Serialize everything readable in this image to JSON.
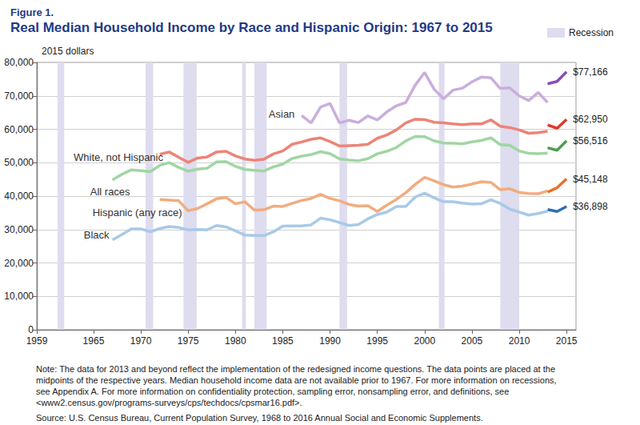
{
  "chart_data": {
    "type": "line",
    "figure_label": "Figure 1.",
    "title": "Real Median Household Income by Race and Hispanic Origin: 1967 to 2015",
    "y_label": "2015 dollars",
    "recession_label": "Recession",
    "recessions": [
      [
        1961.2,
        1961.9
      ],
      [
        1970.5,
        1971.3
      ],
      [
        1974.5,
        1975.9
      ],
      [
        1980.7,
        1981.1
      ],
      [
        1982.0,
        1983.3
      ],
      [
        1991.0,
        1991.8
      ],
      [
        2001.5,
        2002.1
      ],
      [
        2008.0,
        2010.0
      ]
    ],
    "xlim": [
      1959,
      2016
    ],
    "xticks": [
      1959,
      1965,
      1970,
      1975,
      1980,
      1985,
      1990,
      1995,
      2000,
      2005,
      2010,
      2015
    ],
    "ylim": [
      0,
      80000
    ],
    "yticks": [
      0,
      {
        "value": 10000,
        "label": "10,000"
      },
      {
        "value": 20000,
        "label": "20,000"
      },
      {
        "value": 30000,
        "label": "30,000"
      },
      {
        "value": 40000,
        "label": "40,000"
      },
      {
        "value": 50000,
        "label": "50,000"
      },
      {
        "value": 60000,
        "label": "60,000"
      },
      {
        "value": 70000,
        "label": "70,000"
      },
      {
        "value": 80000,
        "label": "80,000"
      }
    ],
    "grid": true,
    "x": [
      1967,
      1968,
      1969,
      1970,
      1971,
      1972,
      1973,
      1974,
      1975,
      1976,
      1977,
      1978,
      1979,
      1980,
      1981,
      1982,
      1983,
      1984,
      1985,
      1986,
      1987,
      1988,
      1989,
      1990,
      1991,
      1992,
      1993,
      1994,
      1995,
      1996,
      1997,
      1998,
      1999,
      2000,
      2001,
      2002,
      2003,
      2004,
      2005,
      2006,
      2007,
      2008,
      2009,
      2010,
      2011,
      2012,
      2013
    ],
    "x_redesigned": [
      2013,
      2014,
      2015
    ],
    "series": [
      {
        "name": "Asian",
        "color": "#c9aedb",
        "values": [
          null,
          null,
          null,
          null,
          null,
          null,
          null,
          null,
          null,
          null,
          null,
          null,
          null,
          null,
          null,
          null,
          null,
          null,
          null,
          null,
          64100,
          61900,
          66700,
          67700,
          61900,
          62700,
          62000,
          64000,
          62800,
          65200,
          67000,
          68000,
          73200,
          77000,
          72000,
          69100,
          71700,
          72300,
          74200,
          75600,
          75400,
          72200,
          72400,
          70000,
          68600,
          71000,
          68000
        ],
        "redesigned": {
          "color": "#8b4bb8",
          "values": [
            73600,
            74300,
            77166
          ]
        },
        "end_label": "$77,166"
      },
      {
        "name": "White, not Hispanic",
        "color": "#ec8478",
        "values": [
          null,
          null,
          null,
          null,
          null,
          52500,
          53200,
          51600,
          50100,
          51400,
          51700,
          53200,
          53400,
          52000,
          51100,
          50700,
          51000,
          52600,
          53500,
          55500,
          56200,
          57000,
          57400,
          56300,
          55000,
          55100,
          55200,
          55500,
          57300,
          58300,
          59800,
          61900,
          63000,
          62900,
          62100,
          61900,
          61600,
          61400,
          61600,
          61600,
          62800,
          60900,
          60500,
          59800,
          58800,
          59000,
          59400
        ],
        "redesigned": {
          "color": "#e2382c",
          "values": [
            61300,
            60300,
            62950
          ]
        },
        "end_label": "$62,950"
      },
      {
        "name": "All races",
        "color": "#9fd6a2",
        "values": [
          44860,
          46520,
          47860,
          47620,
          47330,
          49180,
          50020,
          48600,
          47450,
          48090,
          48300,
          50250,
          50290,
          48910,
          47960,
          47720,
          47500,
          48710,
          49590,
          51260,
          51940,
          52430,
          53300,
          52680,
          51140,
          50800,
          50570,
          51190,
          52660,
          53410,
          54510,
          56510,
          57840,
          57790,
          56530,
          55870,
          55820,
          55630,
          56220,
          56660,
          57420,
          55380,
          55200,
          53500,
          52790,
          52670,
          52850
        ],
        "redesigned": {
          "color": "#4c9f4c",
          "values": [
            54460,
            53720,
            56516
          ]
        },
        "end_label": "$56,516"
      },
      {
        "name": "Hispanic (any race)",
        "color": "#f2ac7e",
        "values": [
          null,
          null,
          null,
          null,
          null,
          39000,
          38800,
          38600,
          35600,
          36300,
          37700,
          39200,
          39600,
          37700,
          38300,
          35800,
          35900,
          37000,
          36900,
          37800,
          38700,
          39300,
          40500,
          39300,
          38600,
          37500,
          37000,
          37100,
          35400,
          37300,
          39000,
          41000,
          43500,
          45600,
          44600,
          43400,
          42700,
          43000,
          43600,
          44300,
          44100,
          41900,
          42200,
          41100,
          40800,
          40700,
          41600
        ],
        "redesigned": {
          "color": "#e8702a",
          "values": [
            41200,
            42500,
            45148
          ]
        },
        "end_label": "$45,148"
      },
      {
        "name": "Black",
        "color": "#a9c9e7",
        "values": [
          26900,
          28500,
          30200,
          30200,
          29300,
          30300,
          30900,
          30600,
          29900,
          30000,
          29900,
          31200,
          30800,
          29600,
          28300,
          28200,
          28200,
          29300,
          31000,
          31100,
          31100,
          31400,
          33400,
          32900,
          32100,
          31200,
          31500,
          33200,
          34500,
          35200,
          36900,
          36900,
          39700,
          40900,
          39500,
          38300,
          38300,
          37900,
          37600,
          37700,
          38900,
          37800,
          36100,
          35200,
          34300,
          34800,
          35500
        ],
        "redesigned": {
          "color": "#2f6fb2",
          "values": [
            36000,
            35400,
            36898
          ]
        },
        "end_label": "$36,898"
      }
    ],
    "note": [
      "Note: The data for 2013 and beyond reflect the implementation of the redesigned income questions. The data points are placed at the",
      "midpoints of the respective years. Median household income data are not available prior to 1967. For more information on recessions,",
      "see Appendix A. For more information on confidentiality protection, sampling error, nonsampling error, and definitions, see",
      "<www2.census.gov/programs-surveys/cps/techdocs/cpsmar16.pdf>."
    ],
    "source": "Source: U.S. Census Bureau, Current Population Survey, 1968 to 2016 Annual Social and Economic Supplements."
  }
}
